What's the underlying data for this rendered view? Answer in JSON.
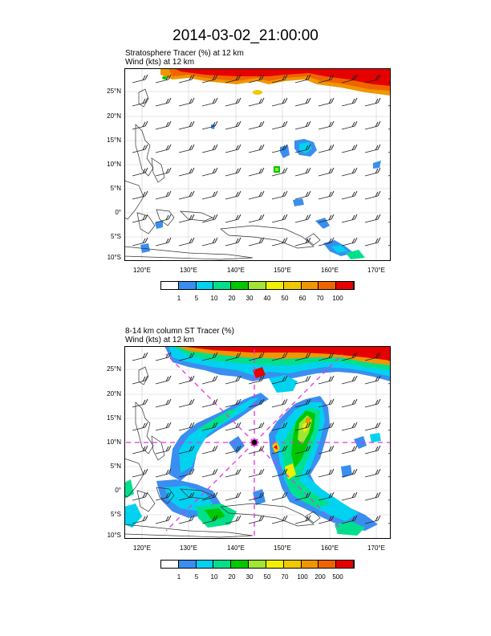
{
  "figure_title": "2014-03-02_21:00:00",
  "panels": [
    {
      "title_line1": "Stratosphere Tracer   (%)     at   12 km",
      "title_line2": "Wind   (kts)     at   12 km",
      "lat_labels": [
        "25°N",
        "20°N",
        "15°N",
        "10°N",
        "5°N",
        "0°",
        "5°S",
        "10°S"
      ],
      "lon_labels": [
        "120°E",
        "130°E",
        "140°E",
        "150°E",
        "160°E",
        "170°E"
      ],
      "colorbar": {
        "labels": [
          "1",
          "5",
          "10",
          "20",
          "30",
          "40",
          "50",
          "60",
          "70",
          "100"
        ],
        "colors": [
          "#ffffff",
          "#3a8ef0",
          "#00d2f0",
          "#00e08c",
          "#00c800",
          "#a0e632",
          "#f0f000",
          "#f0c800",
          "#f09600",
          "#f06400",
          "#e60000"
        ]
      }
    },
    {
      "title_line1": "8-14 km column ST Tracer   (%)",
      "title_line2": "Wind   (kts)     at   12 km",
      "lat_labels": [
        "25°N",
        "20°N",
        "15°N",
        "10°N",
        "5°N",
        "0°",
        "5°S",
        "10°S"
      ],
      "lon_labels": [
        "120°E",
        "130°E",
        "140°E",
        "150°E",
        "160°E",
        "170°E"
      ],
      "colorbar": {
        "labels": [
          "1",
          "5",
          "10",
          "20",
          "30",
          "50",
          "70",
          "100",
          "200",
          "500"
        ],
        "colors": [
          "#ffffff",
          "#3a8ef0",
          "#00d2f0",
          "#00e08c",
          "#00c800",
          "#a0e632",
          "#f0f000",
          "#f0c800",
          "#f09600",
          "#f06400",
          "#e60000"
        ]
      }
    }
  ]
}
